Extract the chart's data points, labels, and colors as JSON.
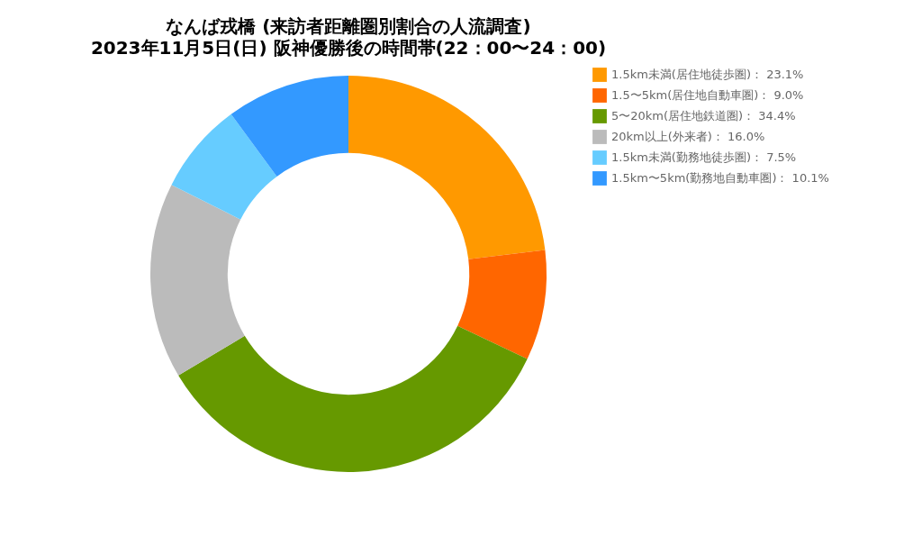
{
  "chart_data": {
    "type": "donut",
    "title": "なんば戎橋 (来訪者距離圏別割合の人流調査)",
    "subtitle": "2023年11月5日(日) 阪神優勝後の時間帯(22：00〜24：00)",
    "categories": [
      "1.5km未満(居住地徒歩圏)： 23.1%",
      "1.5〜5km(居住地自動車圏)： 9.0%",
      "5〜20km(居住地鉄道圏)： 34.4%",
      "20km以上(外来者)： 16.0%",
      "1.5km未満(勤務地徒歩圏)： 7.5%",
      "1.5km〜5km(勤務地自動車圏)： 10.1%"
    ],
    "values": [
      23.1,
      9.0,
      34.4,
      16.0,
      7.5,
      10.1
    ],
    "colors": [
      "#ff9900",
      "#ff6600",
      "#669900",
      "#bbbbbb",
      "#66ccff",
      "#3399ff"
    ],
    "legend": "right"
  }
}
